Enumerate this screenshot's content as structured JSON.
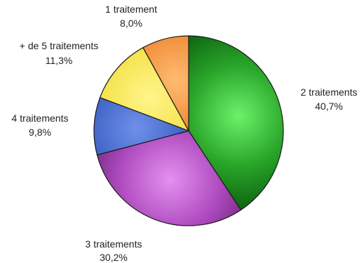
{
  "chart_data": {
    "type": "pie",
    "title": "",
    "start_angle_deg": 0,
    "direction": "clockwise",
    "slices": [
      {
        "label": "2 traitements",
        "value": 40.7,
        "value_text": "40,7%",
        "color": "#2aa62a",
        "highlight": "#6cf26a",
        "shade": "#0f6a12"
      },
      {
        "label": "3 traitements",
        "value": 30.2,
        "value_text": "30,2%",
        "color": "#b04cc0",
        "highlight": "#e391ef",
        "shade": "#6b2479"
      },
      {
        "label": "4 traitements",
        "value": 9.8,
        "value_text": "9,8%",
        "color": "#3d62c2",
        "highlight": "#6f90ea",
        "shade": "#203e8f"
      },
      {
        "label": "+ de 5 traitements",
        "value": 11.3,
        "value_text": "11,3%",
        "color": "#f4e24a",
        "highlight": "#fff58c",
        "shade": "#c5ae1d"
      },
      {
        "label": "1 traitement",
        "value": 8.0,
        "value_text": "8,0%",
        "color": "#ef8c34",
        "highlight": "#ffbb73",
        "shade": "#c55f13"
      }
    ]
  }
}
